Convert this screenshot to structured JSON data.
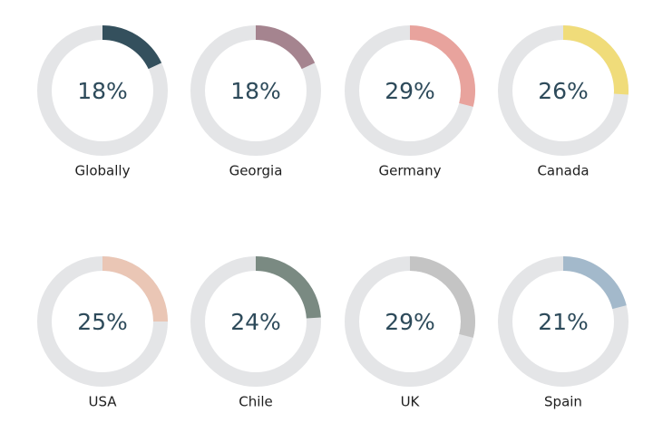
{
  "chart_data": [
    {
      "type": "donut",
      "title": "Globally",
      "values": [
        18
      ],
      "value_labels": [
        "18%"
      ],
      "color": "#34505d"
    },
    {
      "type": "donut",
      "title": "Georgia",
      "values": [
        18
      ],
      "value_labels": [
        "18%"
      ],
      "color": "#a5848f"
    },
    {
      "type": "donut",
      "title": "Germany",
      "values": [
        29
      ],
      "value_labels": [
        "29%"
      ],
      "color": "#e8a39d"
    },
    {
      "type": "donut",
      "title": "Canada",
      "values": [
        26
      ],
      "value_labels": [
        "26%"
      ],
      "color": "#f0dc7a"
    },
    {
      "type": "donut",
      "title": "USA",
      "values": [
        25
      ],
      "value_labels": [
        "25%"
      ],
      "color": "#eac6b5"
    },
    {
      "type": "donut",
      "title": "Chile",
      "values": [
        24
      ],
      "value_labels": [
        "24%"
      ],
      "color": "#7a8a82"
    },
    {
      "type": "donut",
      "title": "UK",
      "values": [
        29
      ],
      "value_labels": [
        "29%"
      ],
      "color": "#c4c4c4"
    },
    {
      "type": "donut",
      "title": "Spain",
      "values": [
        21
      ],
      "value_labels": [
        "21%"
      ],
      "color": "#a3b9cb"
    }
  ]
}
